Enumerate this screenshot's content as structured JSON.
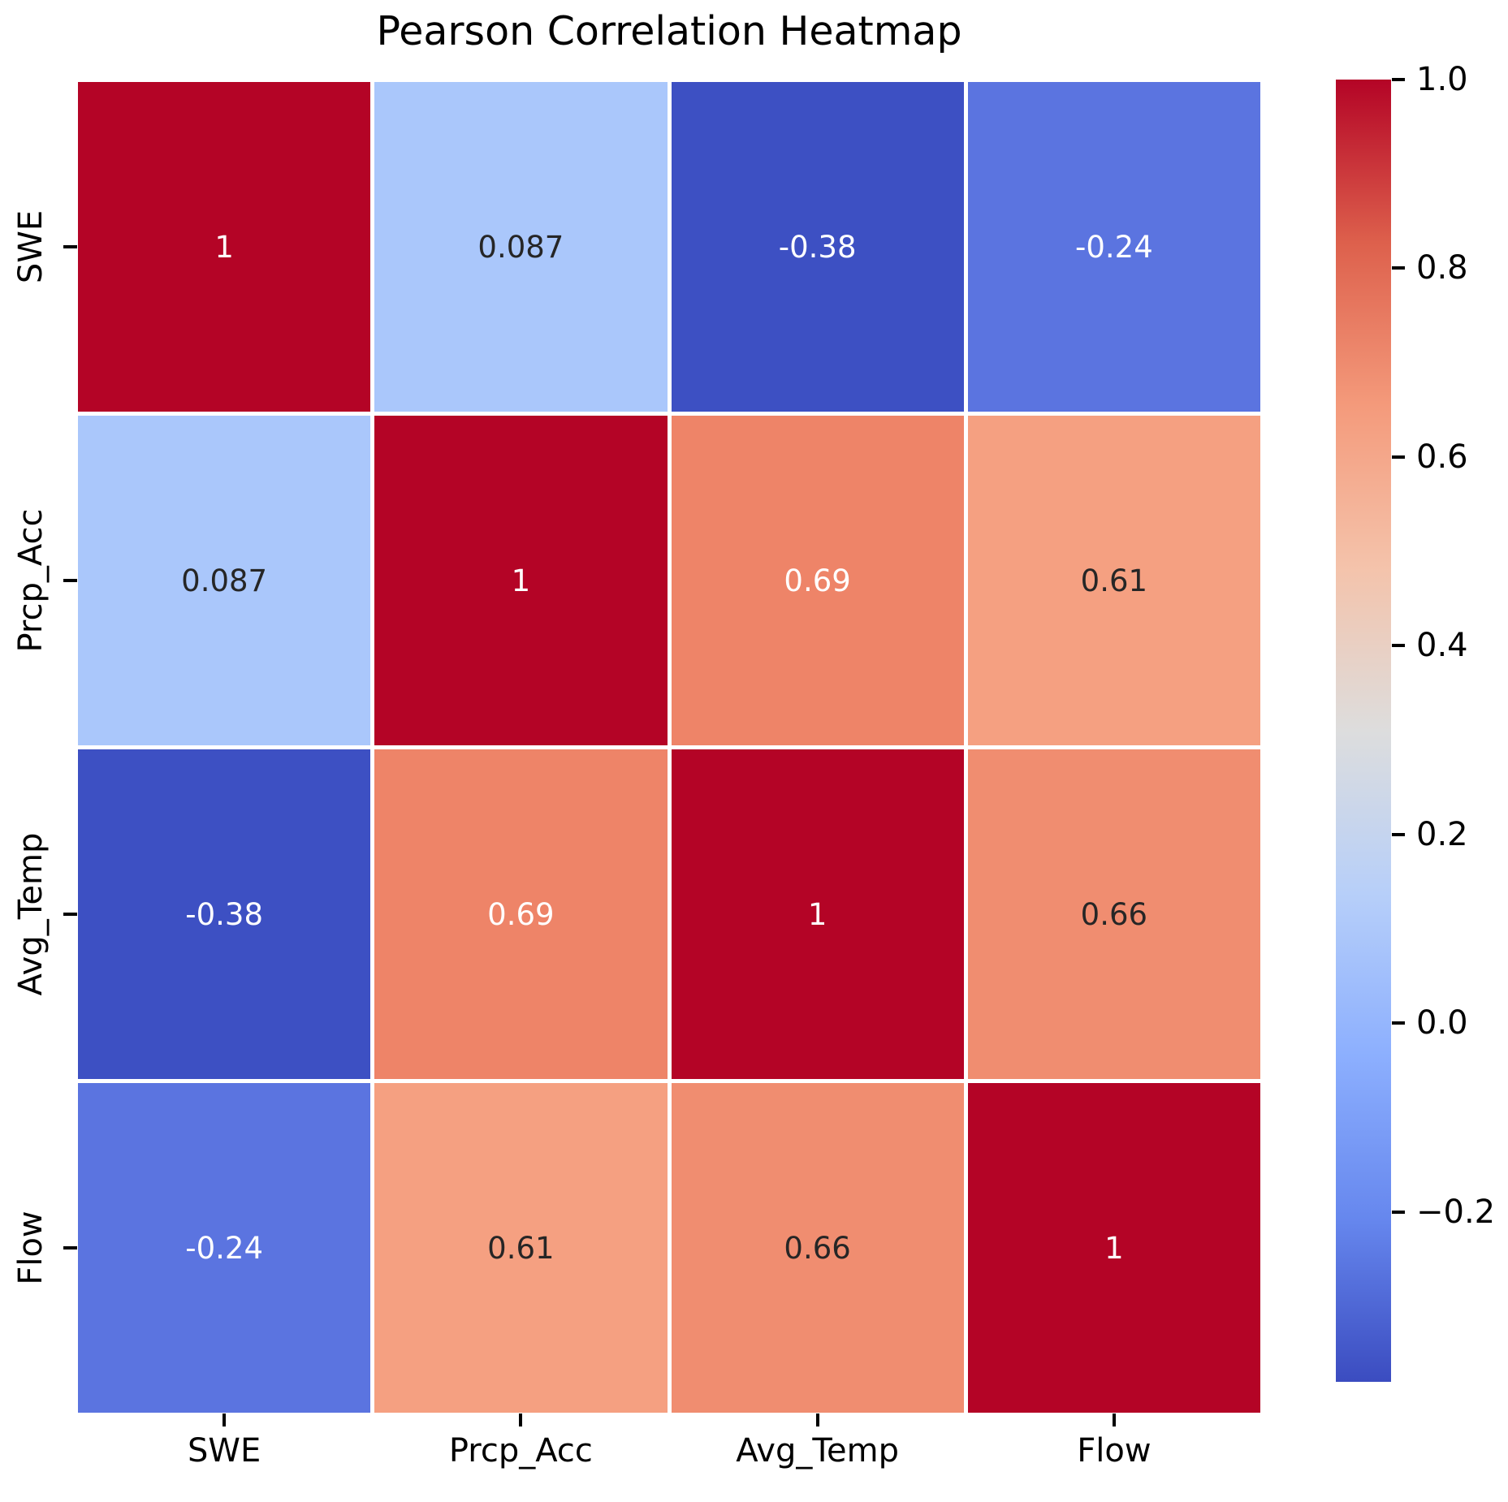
{
  "figure": {
    "title": "Pearson Correlation Heatmap"
  },
  "chart_data": {
    "type": "heatmap",
    "title": "Pearson Correlation Heatmap",
    "categories": [
      "SWE",
      "Prcp_Acc",
      "Avg_Temp",
      "Flow"
    ],
    "x_tick_labels": [
      "SWE",
      "Prcp_Acc",
      "Avg_Temp",
      "Flow"
    ],
    "y_tick_labels": [
      "SWE",
      "Prcp_Acc",
      "Avg_Temp",
      "Flow"
    ],
    "matrix": [
      [
        1,
        0.087,
        -0.38,
        -0.24
      ],
      [
        0.087,
        1,
        0.69,
        0.61
      ],
      [
        -0.38,
        0.69,
        1,
        0.66
      ],
      [
        -0.24,
        0.61,
        0.66,
        1
      ]
    ],
    "cell_labels": [
      [
        "1",
        "0.087",
        "-0.38",
        "-0.24"
      ],
      [
        "0.087",
        "1",
        "0.69",
        "0.61"
      ],
      [
        "-0.38",
        "0.69",
        "1",
        "0.66"
      ],
      [
        "-0.24",
        "0.61",
        "0.66",
        "1"
      ]
    ],
    "cell_colors": [
      [
        "#b40426",
        "#aac7fb",
        "#3d50c3",
        "#5b74e0"
      ],
      [
        "#aac7fb",
        "#b40426",
        "#ee8468",
        "#f5a081"
      ],
      [
        "#3d50c3",
        "#ee8468",
        "#b40426",
        "#f08d70"
      ],
      [
        "#5b74e0",
        "#f5a081",
        "#f08d70",
        "#b40426"
      ]
    ],
    "cell_text_colors": [
      [
        "#ffffff",
        "#262626",
        "#ffffff",
        "#ffffff"
      ],
      [
        "#262626",
        "#ffffff",
        "#ffffff",
        "#262626"
      ],
      [
        "#ffffff",
        "#ffffff",
        "#ffffff",
        "#262626"
      ],
      [
        "#ffffff",
        "#262626",
        "#262626",
        "#ffffff"
      ]
    ],
    "colormap": "coolwarm",
    "vmin": -0.38,
    "vmax": 1.0,
    "grid": false,
    "legend": "none",
    "colorbar": {
      "position": "right",
      "tick_labels": [
        "1.0",
        "0.8",
        "0.6",
        "0.4",
        "0.2",
        "0.0",
        "−0.2"
      ],
      "tick_values": [
        1.0,
        0.8,
        0.6,
        0.4,
        0.2,
        0.0,
        -0.2
      ],
      "gradient_stops": [
        {
          "pos": 0.0,
          "color": "#3b4cc0"
        },
        {
          "pos": 0.125,
          "color": "#6687ee"
        },
        {
          "pos": 0.25,
          "color": "#8caffe"
        },
        {
          "pos": 0.375,
          "color": "#b7cff9"
        },
        {
          "pos": 0.5,
          "color": "#dddddd"
        },
        {
          "pos": 0.625,
          "color": "#f4c3ab"
        },
        {
          "pos": 0.75,
          "color": "#f49a7b"
        },
        {
          "pos": 0.875,
          "color": "#dd604c"
        },
        {
          "pos": 1.0,
          "color": "#b40426"
        }
      ]
    }
  },
  "colors": {
    "background": "#ffffff",
    "grid_gap": "#ffffff",
    "axis_text": "#000000",
    "annot_dark": "#262626",
    "annot_light": "#ffffff",
    "max_red": "#b40426",
    "min_blue": "#3b4cc0"
  }
}
